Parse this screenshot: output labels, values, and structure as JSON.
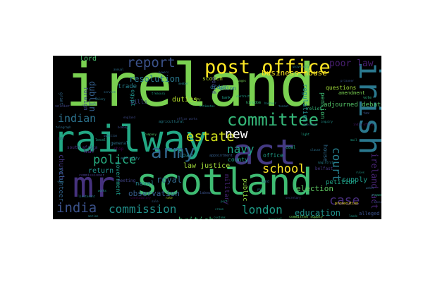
{
  "cloud": {
    "background": "#000000",
    "palette": "viridis",
    "words": [
      {
        "text": "ireland",
        "color": "#7ad151"
      },
      {
        "text": "railway",
        "color": "#22a884"
      },
      {
        "text": "scotland",
        "color": "#3fbc73"
      },
      {
        "text": "act",
        "color": "#443a83"
      },
      {
        "text": "irish",
        "color": "#2a788e"
      },
      {
        "text": "mr",
        "color": "#46327e"
      },
      {
        "text": "post office",
        "color": "#fde725"
      },
      {
        "text": "committee",
        "color": "#35b779"
      },
      {
        "text": "army",
        "color": "#31688e"
      },
      {
        "text": "india",
        "color": "#3b528b"
      },
      {
        "text": "estate",
        "color": "#d2e21b"
      },
      {
        "text": "police",
        "color": "#27ad81"
      },
      {
        "text": "report",
        "color": "#3b528b"
      },
      {
        "text": "commission",
        "color": "#21918c"
      },
      {
        "text": "indian",
        "color": "#2c728e"
      },
      {
        "text": "school",
        "color": "#fde725"
      },
      {
        "text": "london",
        "color": "#1f9e89"
      },
      {
        "text": "new",
        "color": "#ffffff"
      },
      {
        "text": "navy",
        "color": "#20a386"
      },
      {
        "text": "court",
        "color": "#277f8e"
      },
      {
        "text": "case",
        "color": "#472d7b"
      },
      {
        "text": "ireland act",
        "color": "#482576"
      },
      {
        "text": "poor law",
        "color": "#481f70"
      },
      {
        "text": "resolution",
        "color": "#2a788e"
      },
      {
        "text": "business house",
        "color": "#fde725"
      },
      {
        "text": "british",
        "color": "#3fbc73"
      },
      {
        "text": "education",
        "color": "#21918c"
      },
      {
        "text": "royal",
        "color": "#31688e"
      },
      {
        "text": "election",
        "color": "#5ec962"
      },
      {
        "text": "dublin",
        "color": "#35608d"
      },
      {
        "text": "observation",
        "color": "#365c8d"
      },
      {
        "text": "law justice",
        "color": "#a0da39"
      },
      {
        "text": "return",
        "color": "#21918c"
      },
      {
        "text": "church",
        "color": "#453781"
      },
      {
        "text": "county",
        "color": "#1fa188"
      },
      {
        "text": "loan",
        "color": "#26828e"
      },
      {
        "text": "duties",
        "color": "#b5de2b"
      },
      {
        "text": "supply",
        "color": "#1f9a8a"
      },
      {
        "text": "petition",
        "color": "#20a386"
      },
      {
        "text": "trade",
        "color": "#26828e"
      },
      {
        "text": "scotch",
        "color": "#b5de2b"
      },
      {
        "text": "lord",
        "color": "#4ac16d"
      },
      {
        "text": "union",
        "color": "#2e6e8e"
      },
      {
        "text": "volunteer",
        "color": "#32658e"
      },
      {
        "text": "pension",
        "color": "#3dbc74"
      },
      {
        "text": "regulation",
        "color": "#228c8d"
      },
      {
        "text": "adjourned debate",
        "color": "#54c568"
      },
      {
        "text": "questions",
        "color": "#a0da39"
      },
      {
        "text": "amendment",
        "color": "#7ad151"
      },
      {
        "text": "foreign",
        "color": "#3e4989"
      },
      {
        "text": "government",
        "color": "#1e9b8a"
      },
      {
        "text": "military",
        "color": "#482475"
      },
      {
        "text": "public",
        "color": "#8fd744"
      },
      {
        "text": "house",
        "color": "#2f6b8e"
      },
      {
        "text": "naval",
        "color": "#24868e"
      },
      {
        "text": "bills",
        "color": "#3f4788"
      },
      {
        "text": "egypt",
        "color": "#21918c"
      },
      {
        "text": "war",
        "color": "#482677"
      },
      {
        "text": "board",
        "color": "#404588"
      },
      {
        "text": "order",
        "color": "#2a788e"
      },
      {
        "text": "office",
        "color": "#1f9e89"
      },
      {
        "text": "alleged",
        "color": "#3b528b"
      },
      {
        "text": "general",
        "color": "#2c728e"
      },
      {
        "text": "grant",
        "color": "#31688e"
      },
      {
        "text": "relief",
        "color": "#35b779"
      },
      {
        "text": "meeting",
        "color": "#414487"
      },
      {
        "text": "south africa",
        "color": "#46327e"
      },
      {
        "text": "ship",
        "color": "#440154"
      },
      {
        "text": "admiralty",
        "color": "#2a788e"
      },
      {
        "text": "coal",
        "color": "#22a884"
      },
      {
        "text": "appointment",
        "color": "#355f8d"
      },
      {
        "text": "belfast",
        "color": "#453781"
      },
      {
        "text": "prosecution",
        "color": "#fde725"
      },
      {
        "text": "land",
        "color": "#31688e"
      },
      {
        "text": "labour",
        "color": "#3b528b"
      },
      {
        "text": "agricultural",
        "color": "#26828e"
      },
      {
        "text": "bank",
        "color": "#1f9e89"
      },
      {
        "text": "kingdom",
        "color": "#35b779"
      },
      {
        "text": "commissioner",
        "color": "#443983"
      },
      {
        "text": "committee supply",
        "color": "#6ece58"
      },
      {
        "text": "vote",
        "color": "#2db27d"
      },
      {
        "text": "soldier",
        "color": "#404688"
      },
      {
        "text": "local",
        "color": "#1fa088"
      },
      {
        "text": "tax",
        "color": "#3b528b"
      },
      {
        "text": "member",
        "color": "#25848e"
      },
      {
        "text": "annual",
        "color": "#2d708e"
      },
      {
        "text": "bill",
        "color": "#471365"
      },
      {
        "text": "harbour",
        "color": "#228d8d"
      },
      {
        "text": "colonial",
        "color": "#38598c"
      },
      {
        "text": "rate",
        "color": "#b8de29"
      },
      {
        "text": "estimates",
        "color": "#1e9c89"
      },
      {
        "text": "salary",
        "color": "#287c8e"
      },
      {
        "text": "secretary",
        "color": "#3f4889"
      },
      {
        "text": "inquiry",
        "color": "#20938c"
      },
      {
        "text": "company",
        "color": "#52c569"
      },
      {
        "text": "tenant",
        "color": "#2b758e"
      },
      {
        "text": "mail",
        "color": "#1fa287"
      },
      {
        "text": "water",
        "color": "#33638d"
      },
      {
        "text": "steamer",
        "color": "#25ab82"
      },
      {
        "text": "constabulary",
        "color": "#440154"
      },
      {
        "text": "lieutenant",
        "color": "#23898e"
      },
      {
        "text": "port",
        "color": "#1f968b"
      },
      {
        "text": "medical",
        "color": "#3a548c"
      },
      {
        "text": "fund",
        "color": "#2a768e"
      },
      {
        "text": "account",
        "color": "#3d4e8a"
      },
      {
        "text": "pay",
        "color": "#26818e"
      },
      {
        "text": "duty",
        "color": "#9bd93c"
      },
      {
        "text": "service",
        "color": "#2f6c8e"
      },
      {
        "text": "light",
        "color": "#1fa287"
      },
      {
        "text": "india office",
        "color": "#481b6d"
      },
      {
        "text": "england",
        "color": "#3e4a89"
      },
      {
        "text": "treasury",
        "color": "#22a785"
      },
      {
        "text": "clause",
        "color": "#2c718e"
      },
      {
        "text": "crown",
        "color": "#1f958b"
      },
      {
        "text": "powers",
        "color": "#32648e"
      },
      {
        "text": "works",
        "color": "#1e9d89"
      },
      {
        "text": "wages",
        "color": "#75d054"
      },
      {
        "text": "prisoner",
        "color": "#39568c"
      },
      {
        "text": "university",
        "color": "#24878e"
      },
      {
        "text": "telegraph",
        "color": "#2e6f8e"
      },
      {
        "text": "customs",
        "color": "#20a486"
      },
      {
        "text": "bombay",
        "color": "#3c4f8a"
      },
      {
        "text": "motion",
        "color": "#25858e"
      },
      {
        "text": "lands",
        "color": "#1f998a"
      },
      {
        "text": "sale",
        "color": "#34618d"
      },
      {
        "text": "hospital",
        "color": "#2bb07f"
      },
      {
        "text": "office works",
        "color": "#3e4c8a"
      },
      {
        "text": "magistrate",
        "color": "#27808e"
      },
      {
        "text": "rules",
        "color": "#1f9a8a"
      },
      {
        "text": "question",
        "color": "#33628d"
      },
      {
        "text": "contract",
        "color": "#1fa188"
      },
      {
        "text": "income",
        "color": "#2b748e"
      }
    ]
  }
}
